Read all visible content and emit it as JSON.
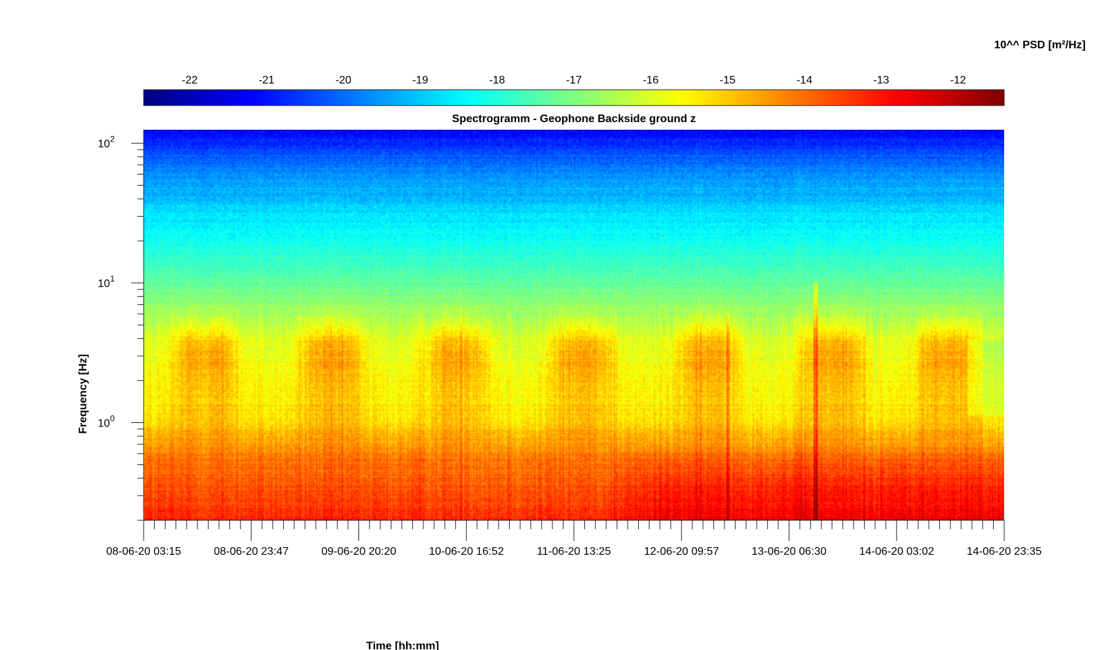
{
  "chart_data": {
    "type": "heatmap",
    "title": "Spectrogramm - Geophone Backside ground z",
    "xlabel": "Time [hh:mm]",
    "ylabel": "Frequency [Hz]",
    "x_ticks": [
      "08-06-20 03:15",
      "08-06-20 23:47",
      "09-06-20 20:20",
      "10-06-20 16:52",
      "11-06-20 13:25",
      "12-06-20 09:57",
      "13-06-20 06:30",
      "14-06-20 03:02",
      "14-06-20 23:35"
    ],
    "x_range": [
      "08-06-20 03:15",
      "14-06-20 23:35"
    ],
    "y_scale": "log",
    "y_range": [
      0.2,
      125
    ],
    "y_ticks": [
      {
        "base": "10",
        "exp": "0",
        "value": 1
      },
      {
        "base": "10",
        "exp": "1",
        "value": 10
      },
      {
        "base": "10",
        "exp": "2",
        "value": 100
      }
    ],
    "colorbar": {
      "label": "10^^ PSD [m²/Hz]",
      "range": [
        -22.6,
        -11.4
      ],
      "ticks": [
        "-22",
        "-21",
        "-20",
        "-19",
        "-18",
        "-17",
        "-16",
        "-15",
        "-14",
        "-13",
        "-12"
      ],
      "colormap": "jet",
      "placement": "top"
    },
    "day_activity_centers_days": [
      0.5,
      1.5,
      2.5,
      3.5,
      4.5,
      5.5,
      6.4
    ],
    "levels_by_frequency": [
      {
        "freq": 125,
        "log_psd": -21.2
      },
      {
        "freq": 60,
        "log_psd": -19.6
      },
      {
        "freq": 30,
        "log_psd": -18.7
      },
      {
        "freq": 15,
        "log_psd": -17.9
      },
      {
        "freq": 8,
        "log_psd": -17.0
      },
      {
        "freq": 4,
        "log_psd": -16.0
      },
      {
        "freq": 2,
        "log_psd": -15.6
      },
      {
        "freq": 1,
        "log_psd": -15.3
      },
      {
        "freq": 0.6,
        "log_psd": -14.2
      },
      {
        "freq": 0.2,
        "log_psd": -13.2
      }
    ],
    "grid": false
  }
}
